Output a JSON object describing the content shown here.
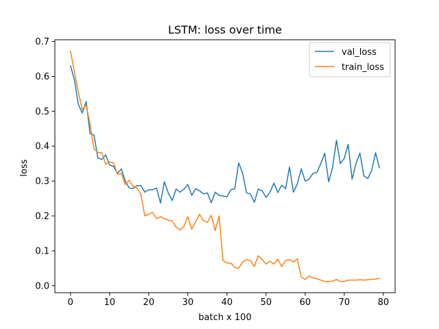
{
  "chart_data": {
    "type": "line",
    "title": "LSTM: loss over time",
    "xlabel": "batch x 100",
    "ylabel": "loss",
    "xlim": [
      -4,
      83
    ],
    "ylim": [
      -0.02,
      0.705
    ],
    "xticks": [
      0,
      10,
      20,
      30,
      40,
      50,
      60,
      70,
      80
    ],
    "yticks": [
      0.0,
      0.1,
      0.2,
      0.3,
      0.4,
      0.5,
      0.6,
      0.7
    ],
    "ytick_labels": [
      "0.0",
      "0.1",
      "0.2",
      "0.3",
      "0.4",
      "0.5",
      "0.6",
      "0.7"
    ],
    "grid": false,
    "legend_position": "upper right",
    "series": [
      {
        "name": "val_loss",
        "color": "#1f77b4",
        "x": [
          0,
          1,
          2,
          3,
          4,
          5,
          6,
          7,
          8,
          9,
          10,
          11,
          12,
          13,
          14,
          15,
          16,
          17,
          18,
          19,
          20,
          21,
          22,
          23,
          24,
          25,
          26,
          27,
          28,
          29,
          30,
          31,
          32,
          33,
          34,
          35,
          36,
          37,
          38,
          39,
          40,
          41,
          42,
          43,
          44,
          45,
          46,
          47,
          48,
          49,
          50,
          51,
          52,
          53,
          54,
          55,
          56,
          57,
          58,
          59,
          60,
          61,
          62,
          63,
          64,
          65,
          66,
          67,
          68,
          69,
          70,
          71,
          72,
          73,
          74,
          75,
          76,
          77,
          78,
          79
        ],
        "y": [
          0.63,
          0.59,
          0.52,
          0.495,
          0.528,
          0.436,
          0.432,
          0.366,
          0.362,
          0.375,
          0.346,
          0.342,
          0.322,
          0.335,
          0.3,
          0.28,
          0.279,
          0.287,
          0.287,
          0.268,
          0.275,
          0.275,
          0.28,
          0.237,
          0.298,
          0.266,
          0.244,
          0.277,
          0.268,
          0.277,
          0.29,
          0.259,
          0.278,
          0.272,
          0.263,
          0.266,
          0.238,
          0.268,
          0.259,
          0.257,
          0.255,
          0.275,
          0.278,
          0.352,
          0.323,
          0.266,
          0.263,
          0.239,
          0.277,
          0.272,
          0.253,
          0.268,
          0.294,
          0.267,
          0.288,
          0.278,
          0.34,
          0.268,
          0.292,
          0.335,
          0.3,
          0.305,
          0.322,
          0.325,
          0.35,
          0.38,
          0.298,
          0.338,
          0.417,
          0.35,
          0.365,
          0.405,
          0.305,
          0.35,
          0.38,
          0.315,
          0.307,
          0.33,
          0.381,
          0.338
        ]
      },
      {
        "name": "train_loss",
        "color": "#ff7f0e",
        "x": [
          0,
          1,
          2,
          3,
          4,
          5,
          6,
          7,
          8,
          9,
          10,
          11,
          12,
          13,
          14,
          15,
          16,
          17,
          18,
          19,
          20,
          21,
          22,
          23,
          24,
          25,
          26,
          27,
          28,
          29,
          30,
          31,
          32,
          33,
          34,
          35,
          36,
          37,
          38,
          39,
          40,
          41,
          42,
          43,
          44,
          45,
          46,
          47,
          48,
          49,
          50,
          51,
          52,
          53,
          54,
          55,
          56,
          57,
          58,
          59,
          60,
          61,
          62,
          63,
          64,
          65,
          66,
          67,
          68,
          69,
          70,
          71,
          72,
          73,
          74,
          75,
          76,
          77,
          78,
          79
        ],
        "y": [
          0.672,
          0.612,
          0.555,
          0.505,
          0.518,
          0.462,
          0.392,
          0.382,
          0.381,
          0.348,
          0.355,
          0.352,
          0.32,
          0.322,
          0.29,
          0.302,
          0.285,
          0.28,
          0.262,
          0.2,
          0.205,
          0.21,
          0.192,
          0.198,
          0.192,
          0.188,
          0.186,
          0.168,
          0.16,
          0.17,
          0.198,
          0.162,
          0.183,
          0.205,
          0.186,
          0.182,
          0.202,
          0.158,
          0.2,
          0.072,
          0.065,
          0.065,
          0.052,
          0.05,
          0.068,
          0.075,
          0.072,
          0.055,
          0.086,
          0.075,
          0.062,
          0.07,
          0.062,
          0.076,
          0.055,
          0.072,
          0.075,
          0.068,
          0.077,
          0.025,
          0.018,
          0.028,
          0.022,
          0.02,
          0.016,
          0.012,
          0.012,
          0.013,
          0.018,
          0.012,
          0.012,
          0.016,
          0.016,
          0.016,
          0.017,
          0.016,
          0.017,
          0.018,
          0.019,
          0.021
        ]
      }
    ]
  }
}
